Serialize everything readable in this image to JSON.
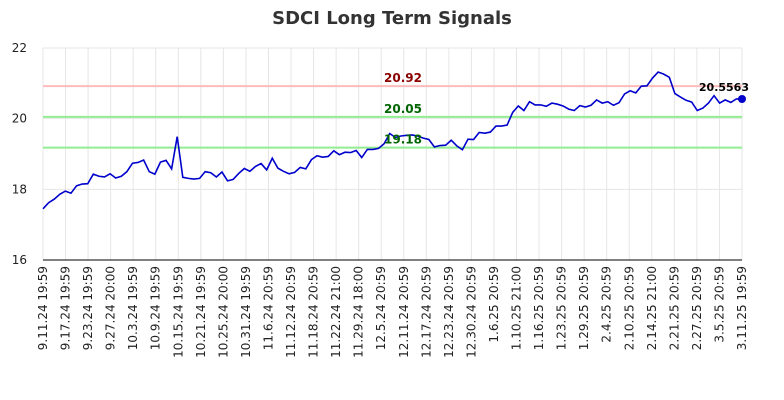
{
  "chart_data": {
    "type": "line",
    "title": "SDCI Long Term Signals",
    "xlabel": "",
    "ylabel": "",
    "ylim": [
      16,
      22
    ],
    "yticks": [
      16,
      18,
      20,
      22
    ],
    "grid": true,
    "x_tick_labels": [
      "9.11.24 19:59",
      "9.17.24 19:59",
      "9.23.24 19:59",
      "9.27.24 20:00",
      "10.3.24 19:59",
      "10.9.24 19:59",
      "10.15.24 19:59",
      "10.21.24 19:59",
      "10.25.24 20:00",
      "10.31.24 19:59",
      "11.6.24 20:59",
      "11.12.24 20:59",
      "11.18.24 20:59",
      "11.22.24 21:00",
      "11.29.24 18:00",
      "12.5.24 20:59",
      "12.11.24 20:59",
      "12.17.24 20:59",
      "12.23.24 20:59",
      "12.30.24 20:59",
      "1.6.25 20:59",
      "1.10.25 21:00",
      "1.16.25 20:59",
      "1.23.25 20:59",
      "1.29.25 20:59",
      "2.4.25 20:59",
      "2.10.25 20:59",
      "2.14.25 21:00",
      "2.21.25 20:59",
      "2.27.25 20:59",
      "3.5.25 20:59",
      "3.11.25 19:59"
    ],
    "signals": [
      {
        "value": 20.92,
        "label": "20.92",
        "line_color": "#ffbbbb",
        "text_color": "#8b0000"
      },
      {
        "value": 20.05,
        "label": "20.05",
        "line_color": "#90ee90",
        "text_color": "#006400"
      },
      {
        "value": 19.18,
        "label": "19.18",
        "line_color": "#90ee90",
        "text_color": "#006400"
      }
    ],
    "last_value_label": "20.5563",
    "series": [
      {
        "color": "#0000cc",
        "values": [
          17.45,
          17.62,
          17.72,
          17.86,
          17.95,
          17.89,
          18.1,
          18.15,
          18.16,
          18.43,
          18.37,
          18.35,
          18.44,
          18.32,
          18.37,
          18.5,
          18.74,
          18.76,
          18.83,
          18.5,
          18.43,
          18.77,
          18.82,
          18.58,
          19.49,
          18.34,
          18.31,
          18.29,
          18.31,
          18.5,
          18.47,
          18.35,
          18.49,
          18.24,
          18.28,
          18.45,
          18.59,
          18.51,
          18.65,
          18.73,
          18.55,
          18.88,
          18.6,
          18.51,
          18.44,
          18.48,
          18.62,
          18.58,
          18.84,
          18.95,
          18.91,
          18.93,
          19.09,
          18.98,
          19.05,
          19.04,
          19.1,
          18.9,
          19.13,
          19.13,
          19.16,
          19.29,
          19.58,
          19.47,
          19.51,
          19.53,
          19.54,
          19.51,
          19.45,
          19.41,
          19.2,
          19.24,
          19.25,
          19.39,
          19.23,
          19.12,
          19.42,
          19.41,
          19.61,
          19.59,
          19.62,
          19.79,
          19.79,
          19.82,
          20.18,
          20.36,
          20.23,
          20.48,
          20.39,
          20.39,
          20.35,
          20.44,
          20.41,
          20.36,
          20.27,
          20.23,
          20.37,
          20.33,
          20.38,
          20.53,
          20.44,
          20.48,
          20.38,
          20.45,
          20.7,
          20.79,
          20.73,
          20.92,
          20.93,
          21.15,
          21.32,
          21.26,
          21.17,
          20.71,
          20.61,
          20.52,
          20.47,
          20.23,
          20.3,
          20.44,
          20.65,
          20.44,
          20.53,
          20.46,
          20.56,
          20.5563
        ]
      }
    ]
  }
}
